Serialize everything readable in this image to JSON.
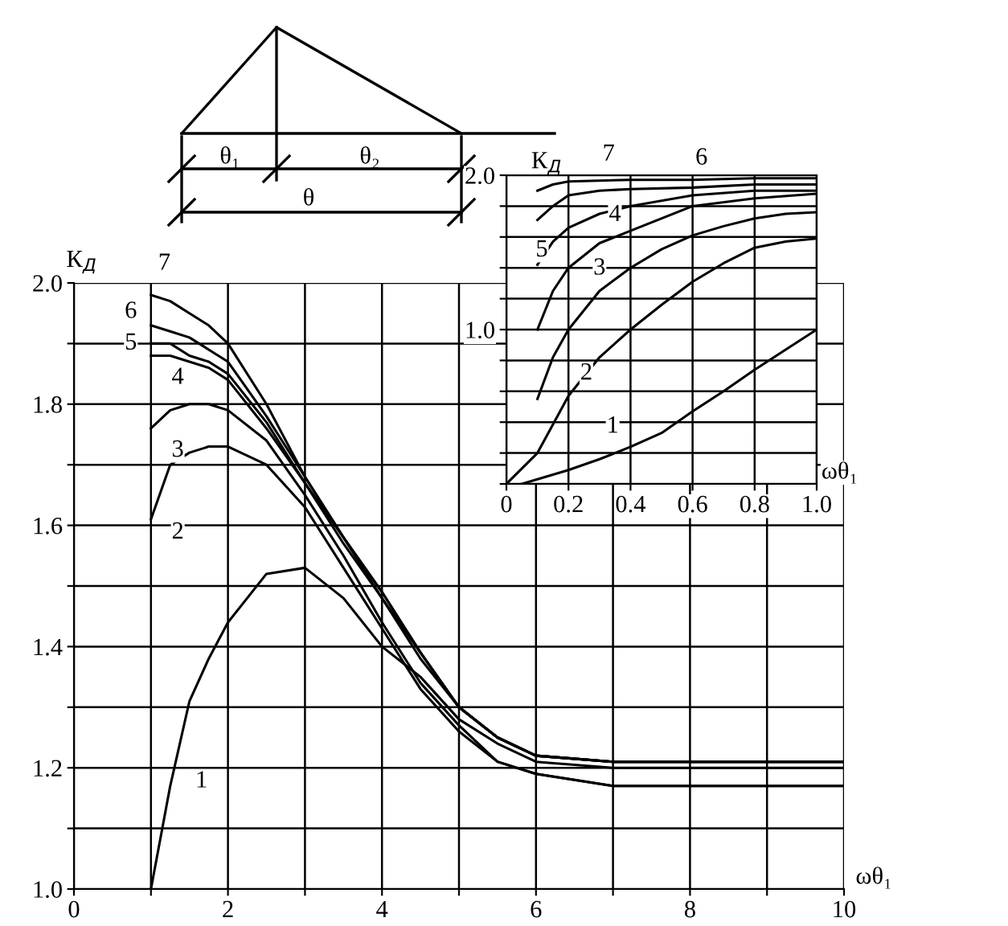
{
  "chart_data": [
    {
      "type": "line",
      "xlabel": "ωθ₁",
      "ylabel": "К$_{Д}$",
      "xlim": [
        0,
        10
      ],
      "ylim": [
        1.0,
        2.0
      ],
      "xticks": [
        0,
        {
          "value": 1,
          "label": null
        },
        2,
        {
          "value": 3,
          "label": null
        },
        4,
        {
          "value": 5,
          "label": null
        },
        6,
        {
          "value": 7,
          "label": null
        },
        8,
        {
          "value": 9,
          "label": null
        },
        10
      ],
      "yticks": [
        {
          "value": 1.0,
          "label": "1.0"
        },
        {
          "value": 1.1,
          "label": null
        },
        1.2,
        {
          "value": 1.3,
          "label": null
        },
        1.4,
        {
          "value": 1.5,
          "label": null
        },
        1.6,
        {
          "value": 1.7,
          "label": null
        },
        1.8,
        {
          "value": 1.9,
          "label": null
        },
        {
          "value": 2.0,
          "label": "2.0"
        }
      ],
      "grid": true,
      "marker": "none",
      "line_style": "solid",
      "x": [
        1,
        1.25,
        1.5,
        1.75,
        2,
        2.5,
        3,
        3.5,
        4,
        4.5,
        5,
        5.5,
        6,
        7,
        8,
        10
      ],
      "series": [
        {
          "color": "#000000",
          "values": [
            1.0,
            1.17,
            1.31,
            1.38,
            1.44,
            1.52,
            1.53,
            1.48,
            1.4,
            1.35,
            1.28,
            1.24,
            1.21,
            1.2,
            1.2,
            1.2
          ]
        },
        {
          "color": "#000000",
          "values": [
            1.61,
            1.7,
            1.72,
            1.73,
            1.73,
            1.7,
            1.63,
            1.53,
            1.43,
            1.33,
            1.26,
            1.21,
            1.19,
            1.17,
            1.17,
            1.17
          ]
        },
        {
          "color": "#000000",
          "values": [
            1.76,
            1.79,
            1.8,
            1.8,
            1.79,
            1.74,
            1.65,
            1.55,
            1.44,
            1.34,
            1.27,
            1.21,
            1.19,
            1.17,
            1.17,
            1.17
          ]
        },
        {
          "color": "#000000",
          "values": [
            1.88,
            1.88,
            1.87,
            1.86,
            1.84,
            1.76,
            1.67,
            1.57,
            1.48,
            1.38,
            1.3,
            1.25,
            1.22,
            1.21,
            1.21,
            1.21
          ]
        },
        {
          "color": "#000000",
          "values": [
            1.9,
            1.9,
            1.88,
            1.87,
            1.85,
            1.77,
            1.67,
            1.58,
            1.48,
            1.39,
            1.3,
            1.25,
            1.22,
            1.21,
            1.21,
            1.21
          ]
        },
        {
          "color": "#000000",
          "values": [
            1.93,
            1.92,
            1.91,
            1.89,
            1.87,
            1.78,
            1.68,
            1.58,
            1.49,
            1.39,
            1.3,
            1.25,
            1.22,
            1.21,
            1.21,
            1.21
          ]
        },
        {
          "color": "#000000",
          "values": [
            1.98,
            1.97,
            1.95,
            1.93,
            1.9,
            1.8,
            1.68,
            1.58,
            1.49,
            1.39,
            1.3,
            1.25,
            1.22,
            1.21,
            1.21,
            1.21
          ]
        }
      ],
      "annotations": [
        "1",
        "2",
        "3",
        "4",
        "5",
        "6",
        "7",
        "θ₁",
        "θ₂",
        "θ"
      ]
    },
    {
      "type": "line",
      "xlabel": "ωθ₁",
      "ylabel": "К$_{Д}$",
      "xlim": [
        0,
        1.0
      ],
      "ylim": [
        0,
        2.0
      ],
      "xticks": [
        0,
        0.2,
        0.4,
        0.6,
        0.8,
        {
          "value": 1.0,
          "label": "1.0"
        }
      ],
      "yticks": [
        {
          "value": 0,
          "label": null
        },
        {
          "value": 0.2,
          "label": null
        },
        {
          "value": 0.4,
          "label": null
        },
        {
          "value": 0.6,
          "label": null
        },
        {
          "value": 0.8,
          "label": null
        },
        {
          "value": 1.0,
          "label": "1.0"
        },
        {
          "value": 1.2,
          "label": null
        },
        {
          "value": 1.4,
          "label": null
        },
        {
          "value": 1.6,
          "label": null
        },
        {
          "value": 1.8,
          "label": null
        },
        {
          "value": 2.0,
          "label": "2.0"
        }
      ],
      "grid": true,
      "marker": "none",
      "line_style": "solid",
      "series": [
        {
          "color": "#000000",
          "x": [
            0.05,
            0.2,
            0.3,
            0.4,
            0.5,
            0.6,
            0.7,
            0.8,
            0.9,
            1.0
          ],
          "values": [
            0,
            0.09,
            0.16,
            0.24,
            0.33,
            0.47,
            0.6,
            0.74,
            0.87,
            1.0
          ]
        },
        {
          "color": "#000000",
          "x": [
            0,
            0.1,
            0.2,
            0.3,
            0.4,
            0.5,
            0.6,
            0.7,
            0.8,
            0.9,
            1.0
          ],
          "values": [
            0,
            0.2,
            0.57,
            0.82,
            1.0,
            1.16,
            1.31,
            1.43,
            1.53,
            1.57,
            1.59
          ]
        },
        {
          "color": "#000000",
          "x": [
            0.1,
            0.15,
            0.2,
            0.3,
            0.4,
            0.5,
            0.6,
            0.7,
            0.8,
            0.9,
            1.0
          ],
          "values": [
            0.55,
            0.82,
            1.0,
            1.25,
            1.4,
            1.52,
            1.61,
            1.67,
            1.72,
            1.75,
            1.76
          ]
        },
        {
          "color": "#000000",
          "x": [
            0.1,
            0.15,
            0.2,
            0.3,
            0.4,
            0.6,
            0.8,
            1.0
          ],
          "values": [
            1.0,
            1.25,
            1.4,
            1.56,
            1.64,
            1.8,
            1.85,
            1.88
          ]
        },
        {
          "color": "#000000",
          "x": [
            0.1,
            0.15,
            0.2,
            0.3,
            0.4,
            0.6,
            0.8,
            1.0
          ],
          "values": [
            1.42,
            1.57,
            1.66,
            1.75,
            1.8,
            1.87,
            1.9,
            1.9
          ]
        },
        {
          "color": "#000000",
          "x": [
            0.1,
            0.15,
            0.2,
            0.3,
            0.4,
            0.6,
            0.8,
            1.0
          ],
          "values": [
            1.71,
            1.8,
            1.87,
            1.9,
            1.91,
            1.92,
            1.94,
            1.94
          ]
        },
        {
          "color": "#000000",
          "x": [
            0.1,
            0.15,
            0.2,
            0.4,
            0.6,
            0.8,
            1.0
          ],
          "values": [
            1.9,
            1.94,
            1.96,
            1.97,
            1.97,
            1.98,
            1.98
          ]
        }
      ],
      "annotations": [
        "1",
        "2",
        "3",
        "4",
        "5",
        "6",
        "7"
      ]
    }
  ]
}
